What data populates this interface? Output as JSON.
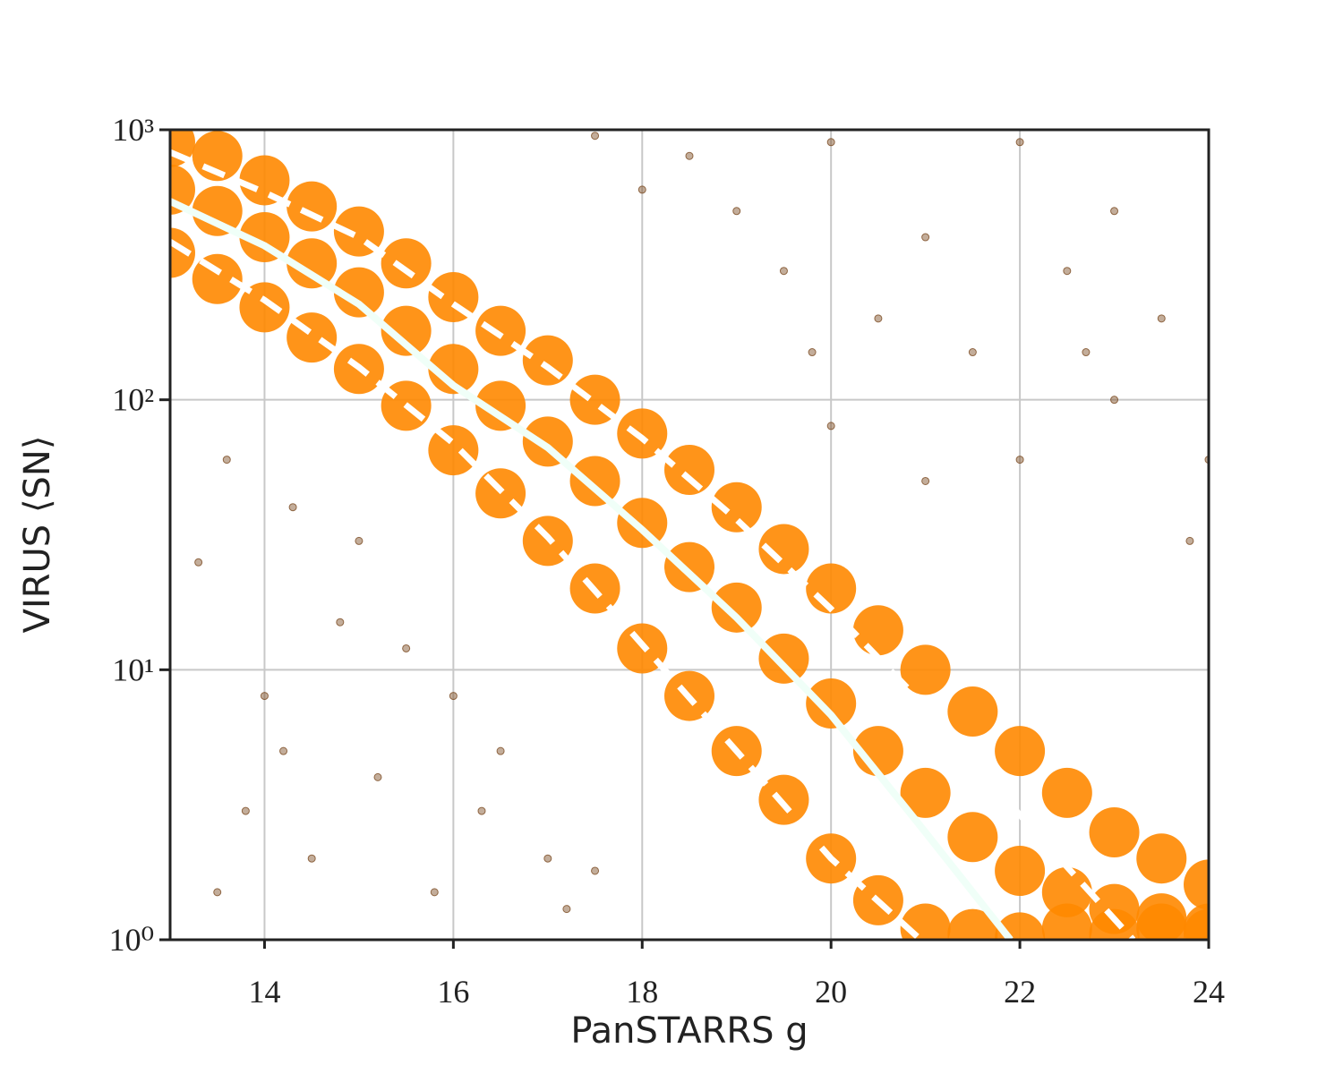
{
  "chart_data": {
    "type": "scatter",
    "x_label": "PanSTARRS g",
    "y_label": "VIRUS ⟨SN⟩",
    "xlim": [
      13,
      24
    ],
    "xticks": [
      14,
      16,
      18,
      20,
      22,
      24
    ],
    "ylim": [
      1,
      1000
    ],
    "yticks": [
      {
        "value": 1,
        "label": "10⁰"
      },
      {
        "value": 10,
        "label": "10¹"
      },
      {
        "value": 100,
        "label": "10²"
      },
      {
        "value": 1000,
        "label": "10³"
      }
    ],
    "y_scale": "log",
    "grid": true,
    "series": [
      {
        "style": "points",
        "color": "#ff8800",
        "opacity": 0.9,
        "size": 28,
        "x": [
          13,
          13,
          13,
          13.5,
          13.5,
          13.5,
          14,
          14,
          14,
          14.5,
          14.5,
          14.5,
          15,
          15,
          15,
          15.5,
          15.5,
          15.5,
          16,
          16,
          16,
          16.5,
          16.5,
          16.5,
          17,
          17,
          17,
          17.5,
          17.5,
          17.5,
          18,
          18,
          18,
          18.5,
          18.5,
          18.5,
          19,
          19,
          19,
          19.5,
          19.5,
          19.5,
          20,
          20,
          20,
          20.5,
          20.5,
          20.5,
          21,
          21,
          21,
          21.5,
          21.5,
          21.5,
          22,
          22,
          22,
          22.5,
          22.5,
          22.5,
          23,
          23,
          23,
          23.5,
          23.5,
          23.5,
          24,
          24,
          24
        ],
        "values": [
          600,
          900,
          350,
          500,
          800,
          280,
          400,
          650,
          220,
          320,
          520,
          170,
          250,
          420,
          130,
          180,
          320,
          95,
          130,
          240,
          65,
          95,
          180,
          45,
          70,
          140,
          30,
          50,
          100,
          20,
          35,
          75,
          12,
          24,
          55,
          8,
          17,
          40,
          5,
          11,
          28,
          3.3,
          7.5,
          20,
          2,
          5,
          14,
          1.4,
          3.5,
          10,
          1.1,
          2.4,
          7,
          1.05,
          1.8,
          5,
          1.02,
          1.5,
          3.5,
          1.1,
          1.3,
          2.5,
          1.05,
          1.2,
          2,
          1.1,
          1.1,
          1.6,
          1.05
        ]
      },
      {
        "style": "points",
        "color": "#7a4a20",
        "opacity": 0.45,
        "size": 4,
        "x": [
          13.5,
          13.8,
          14,
          14.2,
          14.5,
          14.8,
          15,
          15.2,
          15.5,
          15.8,
          16,
          16.3,
          16.5,
          17,
          17.2,
          17.5,
          13.3,
          13.6,
          14.3,
          18.5,
          19,
          19.5,
          20,
          20.5,
          21,
          21.5,
          22,
          22.5,
          23,
          23.5,
          23,
          22,
          21,
          20,
          24,
          23.8,
          22.7,
          19.8,
          18,
          17.5
        ],
        "values": [
          1.5,
          3,
          8,
          5,
          2,
          15,
          30,
          4,
          12,
          1.5,
          8,
          3,
          5,
          2,
          1.3,
          1.8,
          25,
          60,
          40,
          800,
          500,
          300,
          900,
          200,
          400,
          150,
          900,
          300,
          500,
          200,
          100,
          60,
          50,
          80,
          60,
          30,
          150,
          150,
          600,
          950
        ]
      },
      {
        "style": "line",
        "color": "#f0fff8",
        "width": 8,
        "x": [
          13,
          14,
          15,
          16,
          17,
          18,
          19,
          20,
          21,
          21.9
        ],
        "values": [
          543,
          372,
          226,
          113,
          66.5,
          33,
          15.6,
          6.8,
          2.5,
          1
        ]
      },
      {
        "style": "dashed",
        "color": "#ffffff",
        "width": 7,
        "x": [
          13,
          14,
          15,
          16,
          17,
          18,
          19,
          20,
          21,
          22,
          23.2
        ],
        "values": [
          826,
          586,
          400,
          226,
          132,
          72,
          36,
          16.8,
          7.3,
          2.9,
          1
        ]
      },
      {
        "style": "dashed",
        "color": "#ffffff",
        "width": 7,
        "x": [
          13,
          14,
          15,
          16,
          17,
          18,
          19,
          20,
          20.95
        ],
        "values": [
          385,
          234,
          132,
          69,
          31,
          12.4,
          5,
          2,
          1
        ]
      }
    ]
  }
}
